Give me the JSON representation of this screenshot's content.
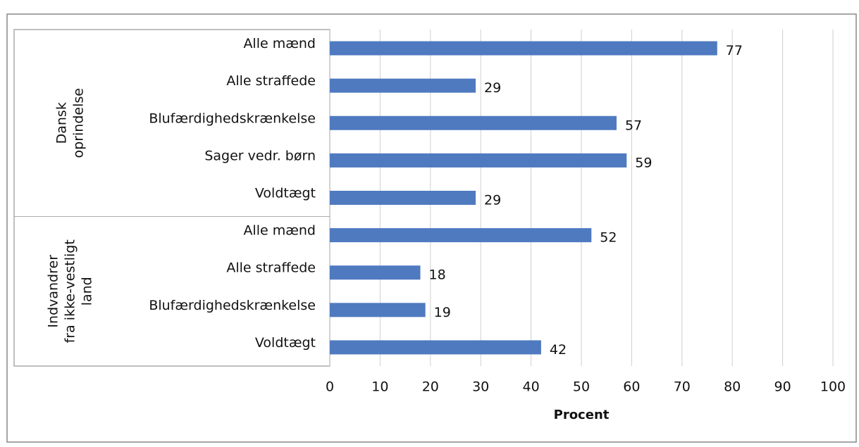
{
  "chart_data": {
    "type": "bar",
    "orientation": "horizontal",
    "groups": [
      {
        "name_lines": [
          "Dansk",
          "oprindelse"
        ],
        "categories": [
          "Alle mænd",
          "Alle straffede",
          "Blufærdighedskrænkelse",
          "Sager vedr. børn",
          "Voldtægt"
        ],
        "values": [
          77,
          29,
          57,
          59,
          29
        ]
      },
      {
        "name_lines": [
          "Indvandrer",
          "fra ikke-vestligt",
          "land"
        ],
        "categories": [
          "Alle mænd",
          "Alle straffede",
          "Blufærdighedskrænkelse",
          "Voldtægt"
        ],
        "values": [
          52,
          18,
          19,
          42
        ]
      }
    ],
    "color": "#4f7ac0",
    "xlabel": "Procent",
    "xlim": [
      0,
      100
    ],
    "xticks": [
      0,
      10,
      20,
      30,
      40,
      50,
      60,
      70,
      80,
      90,
      100
    ],
    "grid": true
  }
}
